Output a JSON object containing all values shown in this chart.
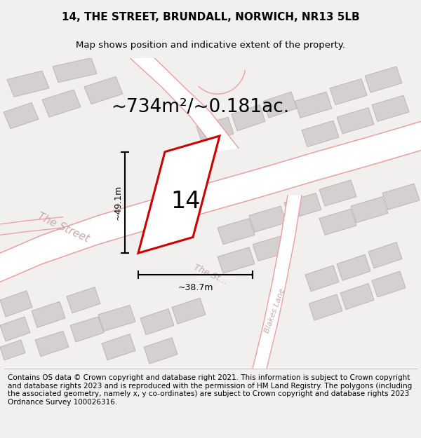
{
  "title": "14, THE STREET, BRUNDALL, NORWICH, NR13 5LB",
  "subtitle": "Map shows position and indicative extent of the property.",
  "area_label": "~734m²/~0.181ac.",
  "number_label": "14",
  "dim_height": "~49.1m",
  "dim_width": "~38.7m",
  "footer": "Contains OS data © Crown copyright and database right 2021. This information is subject to Crown copyright and database rights 2023 and is reproduced with the permission of HM Land Registry. The polygons (including the associated geometry, namely x, y co-ordinates) are subject to Crown copyright and database rights 2023 Ordnance Survey 100026316.",
  "bg_color": "#f2efef",
  "map_bg": "#f9f6f6",
  "road_color": "#e8a0a0",
  "building_color": "#d4d0d0",
  "building_edge": "#bfb5b5",
  "highlight_color": "#cc0000",
  "title_fontsize": 11,
  "subtitle_fontsize": 9.5,
  "area_fontsize": 19,
  "number_fontsize": 24,
  "footer_fontsize": 7.5,
  "street_label_color": "#c8aaaa",
  "dim_line_color": "#111111"
}
